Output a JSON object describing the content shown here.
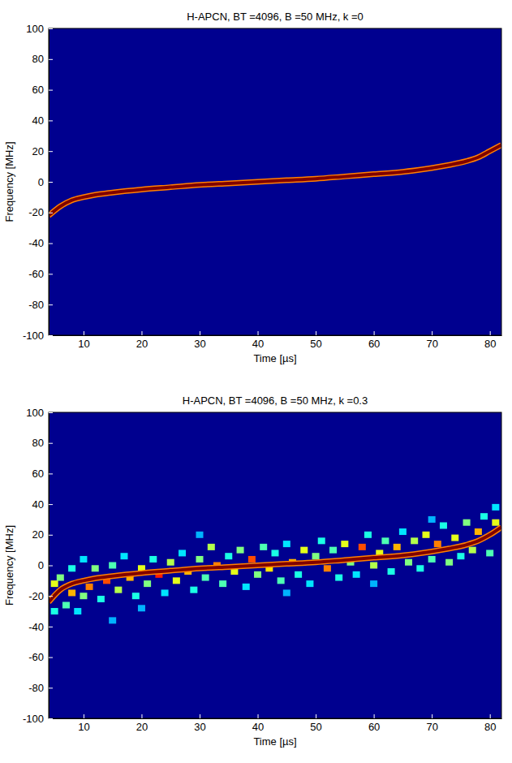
{
  "chart_data": [
    {
      "type": "heatmap",
      "title": "H-APCN, BT =4096, B =50 MHz, k =0",
      "x_label": "Time [µs]",
      "y_label": "Frequency [MHz]",
      "xlim": [
        4,
        82
      ],
      "ylim": [
        -100,
        100
      ],
      "xticks": [
        10,
        20,
        30,
        40,
        50,
        60,
        70,
        80
      ],
      "yticks": [
        -100,
        -80,
        -60,
        -40,
        -20,
        0,
        20,
        40,
        60,
        80,
        100
      ],
      "zlim": [
        0,
        1
      ],
      "series": [
        {
          "type": "line",
          "color": "#800000",
          "x": [
            4,
            6,
            8,
            10,
            12,
            15,
            20,
            25,
            30,
            35,
            40,
            45,
            50,
            55,
            60,
            65,
            70,
            73,
            76,
            78,
            80,
            82
          ],
          "values": [
            -22,
            -16,
            -12,
            -10,
            -8.5,
            -7,
            -5,
            -3.5,
            -2,
            -1,
            0,
            1,
            2,
            3.5,
            5,
            6.5,
            9,
            11,
            13.5,
            16,
            20,
            24
          ]
        }
      ]
    },
    {
      "type": "heatmap",
      "title": "H-APCN, BT =4096, B =50 MHz, k =0.3",
      "x_label": "Time [µs]",
      "y_label": "Frequency [MHz]",
      "xlim": [
        4,
        82
      ],
      "ylim": [
        -100,
        100
      ],
      "xticks": [
        10,
        20,
        30,
        40,
        50,
        60,
        70,
        80
      ],
      "yticks": [
        -100,
        -80,
        -60,
        -40,
        -20,
        0,
        20,
        40,
        60,
        80,
        100
      ],
      "zlim": [
        0,
        1
      ],
      "cells": {
        "x": [
          5,
          5,
          6,
          7,
          8,
          8,
          9,
          10,
          10,
          11,
          12,
          13,
          14,
          15,
          16,
          17,
          18,
          19,
          20,
          21,
          22,
          23,
          24,
          25,
          26,
          27,
          28,
          29,
          30,
          31,
          32,
          33,
          34,
          35,
          36,
          37,
          38,
          39,
          40,
          41,
          42,
          43,
          44,
          45,
          46,
          47,
          48,
          49,
          50,
          51,
          52,
          53,
          54,
          55,
          56,
          57,
          58,
          59,
          60,
          61,
          62,
          63,
          64,
          65,
          66,
          67,
          68,
          69,
          70,
          71,
          72,
          73,
          74,
          75,
          76,
          77,
          78,
          79,
          80,
          81,
          81,
          20,
          45,
          60,
          30,
          15,
          70
        ],
        "y": [
          -30,
          -12,
          -8,
          -26,
          -2,
          -18,
          -30,
          -20,
          4,
          -14,
          -2,
          -22,
          -10,
          0,
          -16,
          6,
          -8,
          -20,
          -2,
          -12,
          4,
          -6,
          -18,
          2,
          -10,
          8,
          -4,
          -16,
          4,
          -8,
          12,
          0,
          -12,
          6,
          -4,
          10,
          -14,
          4,
          -6,
          12,
          -2,
          8,
          -10,
          14,
          2,
          -6,
          10,
          -12,
          6,
          16,
          -2,
          10,
          -8,
          14,
          2,
          -6,
          12,
          20,
          0,
          8,
          16,
          -4,
          12,
          22,
          2,
          16,
          -2,
          20,
          4,
          14,
          26,
          2,
          18,
          6,
          28,
          10,
          22,
          32,
          8,
          28,
          38,
          -28,
          -18,
          -12,
          20,
          -36,
          30
        ],
        "values": [
          0.4,
          0.6,
          0.5,
          0.45,
          0.4,
          0.7,
          0.35,
          0.5,
          0.35,
          0.75,
          0.5,
          0.4,
          0.8,
          0.45,
          0.55,
          0.35,
          0.7,
          0.4,
          0.6,
          0.5,
          0.4,
          0.85,
          0.35,
          0.55,
          0.6,
          0.35,
          0.7,
          0.4,
          0.5,
          0.45,
          0.55,
          0.75,
          0.45,
          0.4,
          0.6,
          0.5,
          0.35,
          0.8,
          0.5,
          0.45,
          0.65,
          0.4,
          0.45,
          0.35,
          0.7,
          0.4,
          0.6,
          0.35,
          0.5,
          0.4,
          0.75,
          0.45,
          0.4,
          0.6,
          0.5,
          0.35,
          0.8,
          0.4,
          0.55,
          0.6,
          0.45,
          0.4,
          0.7,
          0.35,
          0.5,
          0.55,
          0.4,
          0.6,
          0.45,
          0.75,
          0.4,
          0.5,
          0.6,
          0.4,
          0.5,
          0.55,
          0.7,
          0.4,
          0.45,
          0.6,
          0.35,
          0.3,
          0.3,
          0.3,
          0.3,
          0.3,
          0.3
        ]
      },
      "series": [
        {
          "type": "line",
          "color": "#800000",
          "x": [
            4,
            6,
            8,
            10,
            12,
            15,
            20,
            25,
            30,
            35,
            40,
            45,
            50,
            55,
            60,
            65,
            70,
            73,
            76,
            78,
            80,
            82
          ],
          "values": [
            -24,
            -16,
            -12,
            -10,
            -8.5,
            -7,
            -5,
            -3.5,
            -2,
            -1,
            0,
            1,
            2,
            3.5,
            5,
            6.5,
            9,
            11,
            13.5,
            16,
            20,
            25
          ]
        }
      ]
    }
  ]
}
